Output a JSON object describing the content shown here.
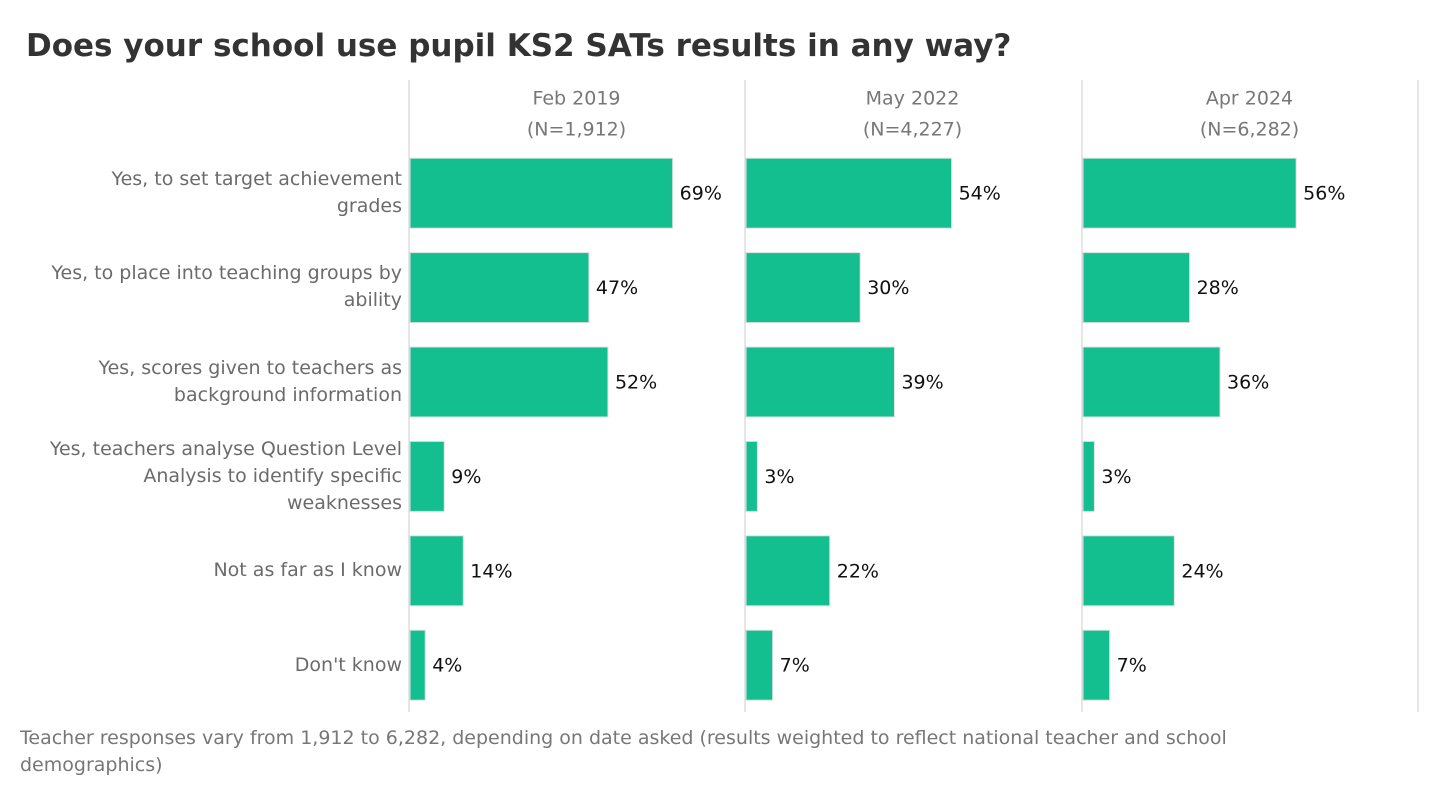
{
  "chart_data": {
    "type": "bar",
    "orientation": "horizontal",
    "title": "Does your school use pupil KS2 SATs results in any way?",
    "categories": [
      "Yes, to set target achievement grades",
      "Yes, to place into teaching groups by ability",
      "Yes, scores given to teachers as background information",
      "Yes, teachers analyse Question Level Analysis to identify specific weaknesses",
      "Not as far as I know",
      "Don't know"
    ],
    "series": [
      {
        "name": "Feb 2019",
        "subtitle": "(N=1,912)",
        "color": "#14bf8f",
        "values": [
          69,
          47,
          52,
          9,
          14,
          4
        ],
        "value_labels": [
          "69%",
          "47%",
          "52%",
          "9%",
          "14%",
          "4%"
        ]
      },
      {
        "name": "May 2022",
        "subtitle": "(N=4,227)",
        "color": "#14bf8f",
        "values": [
          54,
          30,
          39,
          3,
          22,
          7
        ],
        "value_labels": [
          "54%",
          "30%",
          "39%",
          "3%",
          "22%",
          "7%"
        ]
      },
      {
        "name": "Apr 2024",
        "subtitle": "(N=6,282)",
        "color": "#14bf8f",
        "values": [
          56,
          28,
          36,
          3,
          24,
          7
        ],
        "value_labels": [
          "56%",
          "28%",
          "36%",
          "3%",
          "24%",
          "7%"
        ]
      }
    ],
    "xlim": [
      0,
      88
    ],
    "note": "Teacher responses vary from 1,912 to 6,282, depending on date asked (results weighted to reflect national teacher and school demographics)"
  }
}
